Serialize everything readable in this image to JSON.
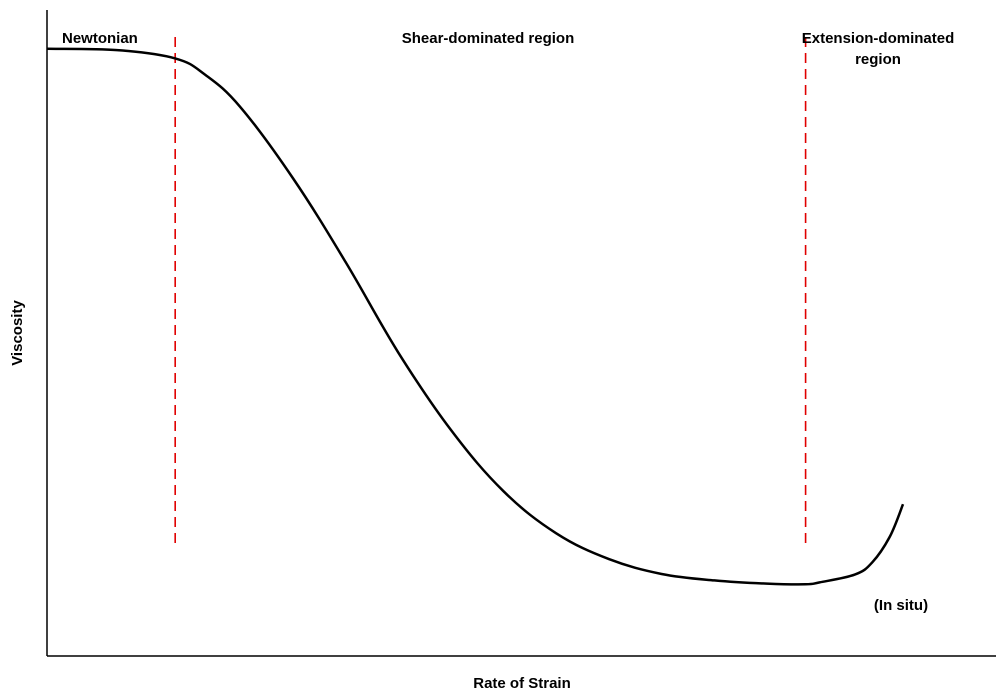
{
  "chart_data": {
    "type": "line",
    "title": "",
    "xlabel": "Rate of Strain",
    "ylabel": "Viscosity",
    "axis_ticks": false,
    "grid": false,
    "xlim": [
      0,
      100
    ],
    "ylim": [
      0,
      100
    ],
    "series": [
      {
        "x": [
          0,
          8,
          14.6,
          18,
          22,
          28,
          34,
          40,
          46,
          52,
          58,
          64,
          70,
          76,
          82,
          86.4,
          88,
          92,
          94,
          96,
          97.5
        ],
        "y": [
          94,
          93.8,
          92.5,
          90,
          85,
          74,
          61,
          47,
          35,
          25.5,
          19,
          15,
          12.7,
          11.7,
          11.2,
          11.1,
          11.4,
          12.6,
          14.5,
          18.5,
          23.5
        ],
        "color": "#000000"
      }
    ],
    "vlines": [
      {
        "x": 14.6,
        "color": "#e00000",
        "style": "dashed"
      },
      {
        "x": 86.4,
        "color": "#e00000",
        "style": "dashed"
      }
    ],
    "annotations": {
      "region1": "Newtonian",
      "region2": "Shear-dominated region",
      "region3_line1": "Extension-dominated",
      "region3_line2": "region",
      "corner": "(In situ)"
    }
  }
}
